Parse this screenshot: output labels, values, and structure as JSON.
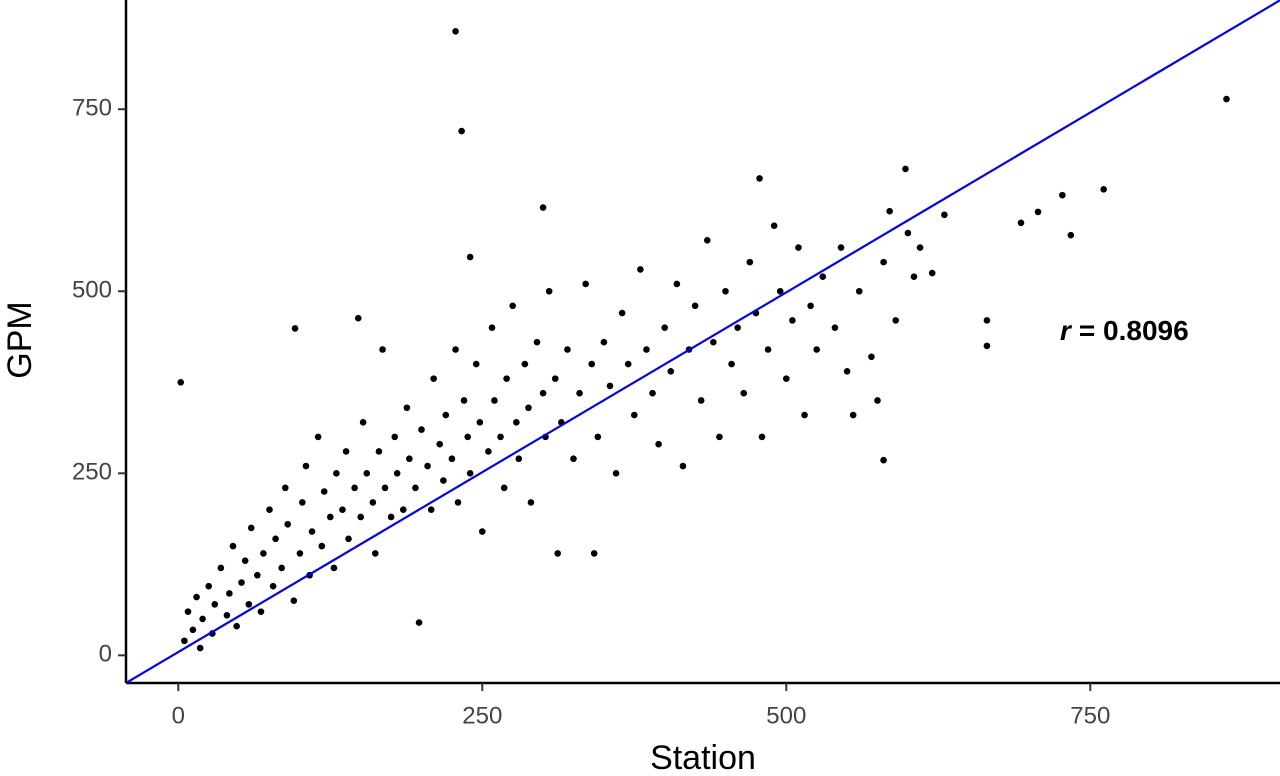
{
  "chart_data": {
    "type": "scatter",
    "x_label": "Station",
    "y_label": "GPM",
    "annotation": {
      "variable": "r",
      "text": "= 0.8096"
    },
    "xlim": [
      -43,
      906
    ],
    "ylim": [
      -38,
      900
    ],
    "xticks": [
      0,
      250,
      500,
      750
    ],
    "yticks": [
      0,
      250,
      500,
      750
    ],
    "grid": false,
    "color": "#000000",
    "fit": {
      "slope": 0.988,
      "intercept": 4.5,
      "color": "#0000ff"
    },
    "x": [
      228,
      233,
      862,
      761,
      727,
      734,
      693,
      707,
      665,
      665,
      580,
      598,
      478,
      300,
      2,
      96,
      240,
      148,
      5,
      8,
      12,
      15,
      18,
      20,
      25,
      28,
      30,
      35,
      40,
      42,
      45,
      48,
      52,
      55,
      58,
      60,
      65,
      68,
      70,
      75,
      78,
      80,
      85,
      88,
      90,
      95,
      100,
      102,
      105,
      108,
      110,
      115,
      118,
      120,
      125,
      128,
      130,
      135,
      138,
      140,
      145,
      150,
      152,
      155,
      160,
      162,
      165,
      168,
      170,
      175,
      178,
      180,
      185,
      188,
      190,
      195,
      198,
      200,
      205,
      208,
      210,
      215,
      218,
      220,
      225,
      228,
      230,
      235,
      238,
      240,
      245,
      248,
      250,
      255,
      258,
      260,
      265,
      268,
      270,
      275,
      278,
      280,
      285,
      288,
      290,
      295,
      300,
      302,
      305,
      310,
      312,
      315,
      320,
      325,
      330,
      335,
      340,
      342,
      345,
      350,
      355,
      360,
      365,
      370,
      375,
      380,
      385,
      390,
      395,
      400,
      405,
      410,
      415,
      420,
      425,
      430,
      435,
      440,
      445,
      450,
      455,
      460,
      465,
      470,
      475,
      480,
      485,
      490,
      495,
      500,
      505,
      510,
      515,
      520,
      525,
      530,
      540,
      545,
      550,
      555,
      560,
      570,
      575,
      580,
      585,
      590,
      600,
      605,
      610,
      620,
      630
    ],
    "y": [
      857,
      720,
      764,
      640,
      632,
      577,
      594,
      609,
      460,
      425,
      268,
      668,
      655,
      615,
      375,
      449,
      547,
      463,
      20,
      60,
      35,
      80,
      10,
      50,
      95,
      30,
      70,
      120,
      55,
      85,
      150,
      40,
      100,
      130,
      70,
      175,
      110,
      60,
      140,
      200,
      95,
      160,
      120,
      230,
      180,
      75,
      140,
      210,
      260,
      110,
      170,
      300,
      150,
      225,
      190,
      120,
      250,
      200,
      280,
      160,
      230,
      190,
      320,
      250,
      210,
      140,
      280,
      420,
      230,
      190,
      300,
      250,
      200,
      340,
      270,
      230,
      45,
      310,
      260,
      200,
      380,
      290,
      240,
      330,
      270,
      420,
      210,
      350,
      300,
      250,
      400,
      320,
      170,
      280,
      450,
      350,
      300,
      230,
      380,
      480,
      320,
      270,
      400,
      340,
      210,
      430,
      360,
      300,
      500,
      380,
      140,
      320,
      420,
      270,
      360,
      510,
      400,
      140,
      300,
      430,
      370,
      250,
      470,
      400,
      330,
      530,
      420,
      360,
      290,
      450,
      390,
      510,
      260,
      420,
      480,
      350,
      570,
      430,
      300,
      500,
      400,
      450,
      360,
      540,
      470,
      300,
      420,
      590,
      500,
      380,
      460,
      560,
      330,
      480,
      420,
      520,
      450,
      560,
      390,
      330,
      500,
      410,
      350,
      540,
      610,
      460,
      580,
      520,
      560,
      525,
      605
    ]
  }
}
